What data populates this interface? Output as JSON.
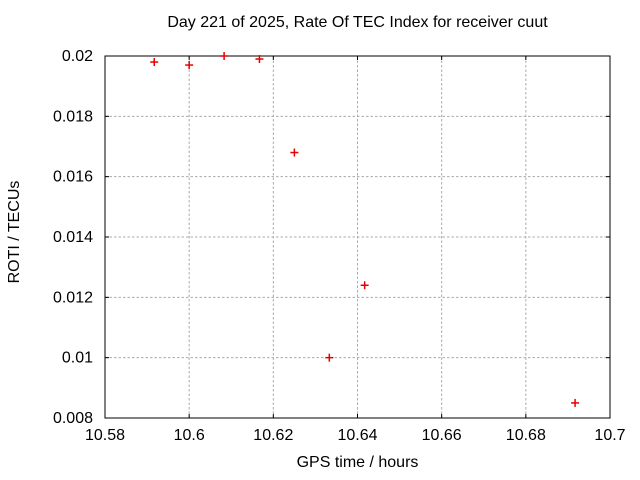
{
  "chart_data": {
    "type": "scatter",
    "title": "Day 221 of 2025, Rate Of TEC Index for receiver cuut",
    "xlabel": "GPS time / hours",
    "ylabel": "ROTI / TECUs",
    "xlim": [
      10.58,
      10.7
    ],
    "ylim": [
      0.008,
      0.02
    ],
    "xticks": [
      10.58,
      10.6,
      10.62,
      10.64,
      10.66,
      10.68,
      10.7
    ],
    "xtick_labels": [
      "10.58",
      "10.6",
      "10.62",
      "10.64",
      "10.66",
      "10.68",
      "10.7"
    ],
    "yticks": [
      0.008,
      0.01,
      0.012,
      0.014,
      0.016,
      0.018,
      0.02
    ],
    "ytick_labels": [
      "0.008",
      "0.01",
      "0.012",
      "0.014",
      "0.016",
      "0.018",
      "0.02"
    ],
    "grid": true,
    "legend_position": "none",
    "marker": "plus",
    "marker_color": "#e60000",
    "grid_color": "#ababab",
    "axis_color": "#000000",
    "background_color": "#ffffff",
    "series": [
      {
        "name": "ROTI",
        "points": [
          [
            10.5917,
            0.0198
          ],
          [
            10.6,
            0.0197
          ],
          [
            10.6083,
            0.02
          ],
          [
            10.6167,
            0.0199
          ],
          [
            10.625,
            0.0168
          ],
          [
            10.6333,
            0.01
          ],
          [
            10.6417,
            0.0124
          ],
          [
            10.6917,
            0.0085
          ]
        ]
      }
    ]
  }
}
